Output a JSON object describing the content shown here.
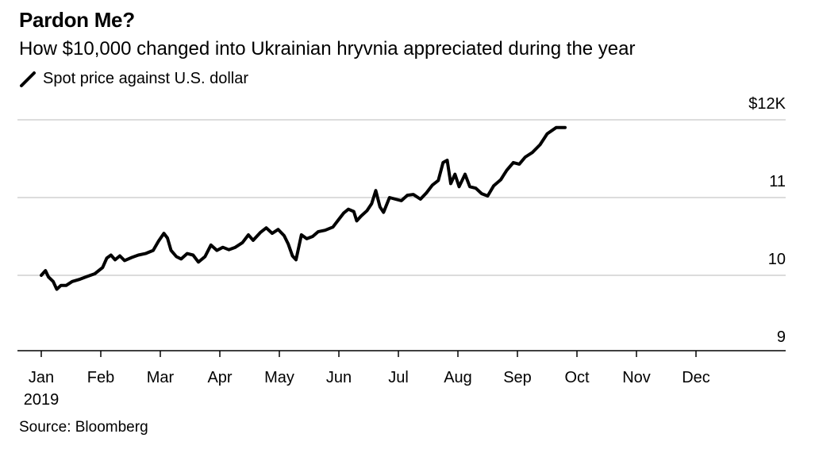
{
  "chart_data": {
    "type": "line",
    "title": "Pardon Me?",
    "subtitle": "How $10,000 changed into Ukrainian hryvnia appreciated during the year",
    "legend": [
      {
        "label": "Spot price against U.S. dollar",
        "color": "#000000"
      }
    ],
    "source": "Source: Bloomberg",
    "y_tick_labels": [
      {
        "value": 9,
        "label": "9"
      },
      {
        "value": 10,
        "label": "10"
      },
      {
        "value": 11,
        "label": "11"
      },
      {
        "value": 12,
        "label": "$12K"
      }
    ],
    "x_tick_labels": [
      {
        "value": 0,
        "label": "Jan",
        "sub": "2019"
      },
      {
        "value": 1,
        "label": "Feb"
      },
      {
        "value": 2,
        "label": "Mar"
      },
      {
        "value": 3,
        "label": "Apr"
      },
      {
        "value": 4,
        "label": "May"
      },
      {
        "value": 5,
        "label": "Jun"
      },
      {
        "value": 6,
        "label": "Jul"
      },
      {
        "value": 7,
        "label": "Aug"
      },
      {
        "value": 8,
        "label": "Sep"
      },
      {
        "value": 9,
        "label": "Oct"
      },
      {
        "value": 10,
        "label": "Nov"
      },
      {
        "value": 11,
        "label": "Dec"
      }
    ],
    "xlim": [
      0,
      12
    ],
    "ylim": [
      8.93,
      12.05
    ],
    "grid": true,
    "series": [
      {
        "color": "#000000",
        "points": [
          [
            0.0,
            10.0
          ],
          [
            0.07,
            10.06
          ],
          [
            0.12,
            9.98
          ],
          [
            0.2,
            9.92
          ],
          [
            0.26,
            9.82
          ],
          [
            0.33,
            9.87
          ],
          [
            0.42,
            9.87
          ],
          [
            0.52,
            9.92
          ],
          [
            0.65,
            9.95
          ],
          [
            0.75,
            9.98
          ],
          [
            0.9,
            10.02
          ],
          [
            1.03,
            10.1
          ],
          [
            1.1,
            10.22
          ],
          [
            1.17,
            10.26
          ],
          [
            1.24,
            10.2
          ],
          [
            1.32,
            10.25
          ],
          [
            1.4,
            10.19
          ],
          [
            1.52,
            10.23
          ],
          [
            1.63,
            10.26
          ],
          [
            1.75,
            10.28
          ],
          [
            1.88,
            10.32
          ],
          [
            1.97,
            10.44
          ],
          [
            2.06,
            10.54
          ],
          [
            2.12,
            10.48
          ],
          [
            2.18,
            10.32
          ],
          [
            2.27,
            10.24
          ],
          [
            2.35,
            10.21
          ],
          [
            2.45,
            10.28
          ],
          [
            2.55,
            10.26
          ],
          [
            2.64,
            10.17
          ],
          [
            2.75,
            10.24
          ],
          [
            2.85,
            10.39
          ],
          [
            2.95,
            10.32
          ],
          [
            3.05,
            10.36
          ],
          [
            3.15,
            10.33
          ],
          [
            3.26,
            10.36
          ],
          [
            3.38,
            10.42
          ],
          [
            3.48,
            10.52
          ],
          [
            3.56,
            10.45
          ],
          [
            3.68,
            10.55
          ],
          [
            3.78,
            10.61
          ],
          [
            3.88,
            10.54
          ],
          [
            3.98,
            10.59
          ],
          [
            4.08,
            10.51
          ],
          [
            4.15,
            10.4
          ],
          [
            4.22,
            10.25
          ],
          [
            4.28,
            10.2
          ],
          [
            4.37,
            10.52
          ],
          [
            4.46,
            10.47
          ],
          [
            4.56,
            10.5
          ],
          [
            4.65,
            10.56
          ],
          [
            4.77,
            10.58
          ],
          [
            4.9,
            10.62
          ],
          [
            5.0,
            10.72
          ],
          [
            5.08,
            10.8
          ],
          [
            5.16,
            10.85
          ],
          [
            5.25,
            10.82
          ],
          [
            5.3,
            10.7
          ],
          [
            5.37,
            10.76
          ],
          [
            5.47,
            10.83
          ],
          [
            5.55,
            10.92
          ],
          [
            5.62,
            11.09
          ],
          [
            5.69,
            10.88
          ],
          [
            5.75,
            10.81
          ],
          [
            5.85,
            11.0
          ],
          [
            5.95,
            10.98
          ],
          [
            6.05,
            10.96
          ],
          [
            6.15,
            11.03
          ],
          [
            6.25,
            11.04
          ],
          [
            6.37,
            10.98
          ],
          [
            6.47,
            11.06
          ],
          [
            6.57,
            11.16
          ],
          [
            6.67,
            11.22
          ],
          [
            6.75,
            11.45
          ],
          [
            6.82,
            11.48
          ],
          [
            6.88,
            11.18
          ],
          [
            6.95,
            11.3
          ],
          [
            7.02,
            11.14
          ],
          [
            7.12,
            11.3
          ],
          [
            7.2,
            11.14
          ],
          [
            7.3,
            11.12
          ],
          [
            7.4,
            11.05
          ],
          [
            7.5,
            11.02
          ],
          [
            7.6,
            11.15
          ],
          [
            7.72,
            11.23
          ],
          [
            7.82,
            11.35
          ],
          [
            7.93,
            11.45
          ],
          [
            8.03,
            11.43
          ],
          [
            8.13,
            11.52
          ],
          [
            8.25,
            11.58
          ],
          [
            8.38,
            11.68
          ],
          [
            8.5,
            11.82
          ],
          [
            8.65,
            11.9
          ],
          [
            8.8,
            11.9
          ]
        ]
      }
    ]
  }
}
